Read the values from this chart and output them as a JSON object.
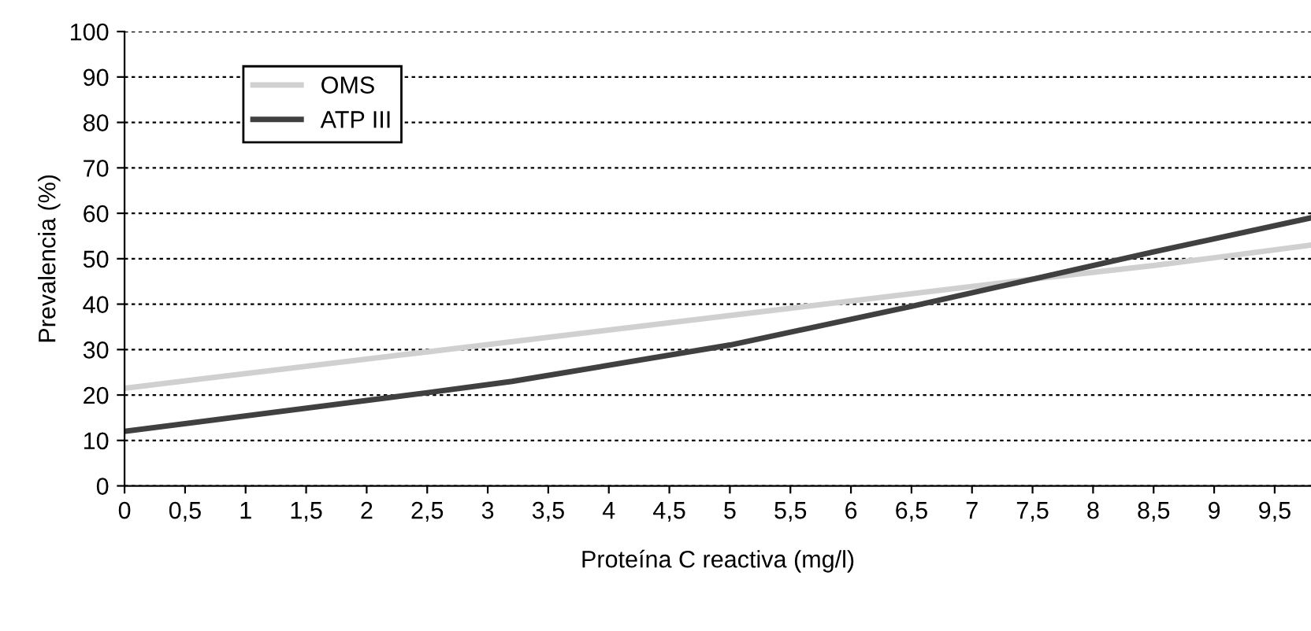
{
  "chart_data": {
    "type": "line",
    "xlabel": "Proteína C reactiva (mg/l)",
    "ylabel": "Prevalencia (%)",
    "xlim": [
      0,
      9.8
    ],
    "ylim": [
      0,
      100
    ],
    "xticks": [
      0,
      {
        "value": 0.5,
        "label": "0,5"
      },
      1,
      {
        "value": 1.5,
        "label": "1,5"
      },
      2,
      {
        "value": 2.5,
        "label": "2,5"
      },
      3,
      {
        "value": 3.5,
        "label": "3,5"
      },
      4,
      {
        "value": 4.5,
        "label": "4,5"
      },
      5,
      {
        "value": 5.5,
        "label": "5,5"
      },
      6,
      {
        "value": 6.5,
        "label": "6,5"
      },
      7,
      {
        "value": 7.5,
        "label": "7,5"
      },
      8,
      {
        "value": 8.5,
        "label": "8,5"
      },
      9,
      {
        "value": 9.5,
        "label": "9,5"
      }
    ],
    "yticks": [
      0,
      10,
      20,
      30,
      40,
      50,
      60,
      70,
      80,
      90,
      100
    ],
    "grid": "y",
    "legend": "top left",
    "line_style": "solid",
    "series": [
      {
        "name": "OMS",
        "color": "#d0d0d0",
        "x": [
          0,
          2.5,
          5,
          7.5,
          8.5,
          9,
          9.8
        ],
        "values": [
          21.5,
          29.5,
          37.5,
          45.5,
          48.5,
          50.2,
          53
        ]
      },
      {
        "name": "ATP III",
        "color": "#404040",
        "x": [
          0,
          2.5,
          3.2,
          5,
          6.5,
          7.5,
          8.5,
          9.8
        ],
        "values": [
          12,
          20.5,
          23,
          31,
          39.5,
          45.5,
          51.5,
          59
        ]
      }
    ]
  }
}
